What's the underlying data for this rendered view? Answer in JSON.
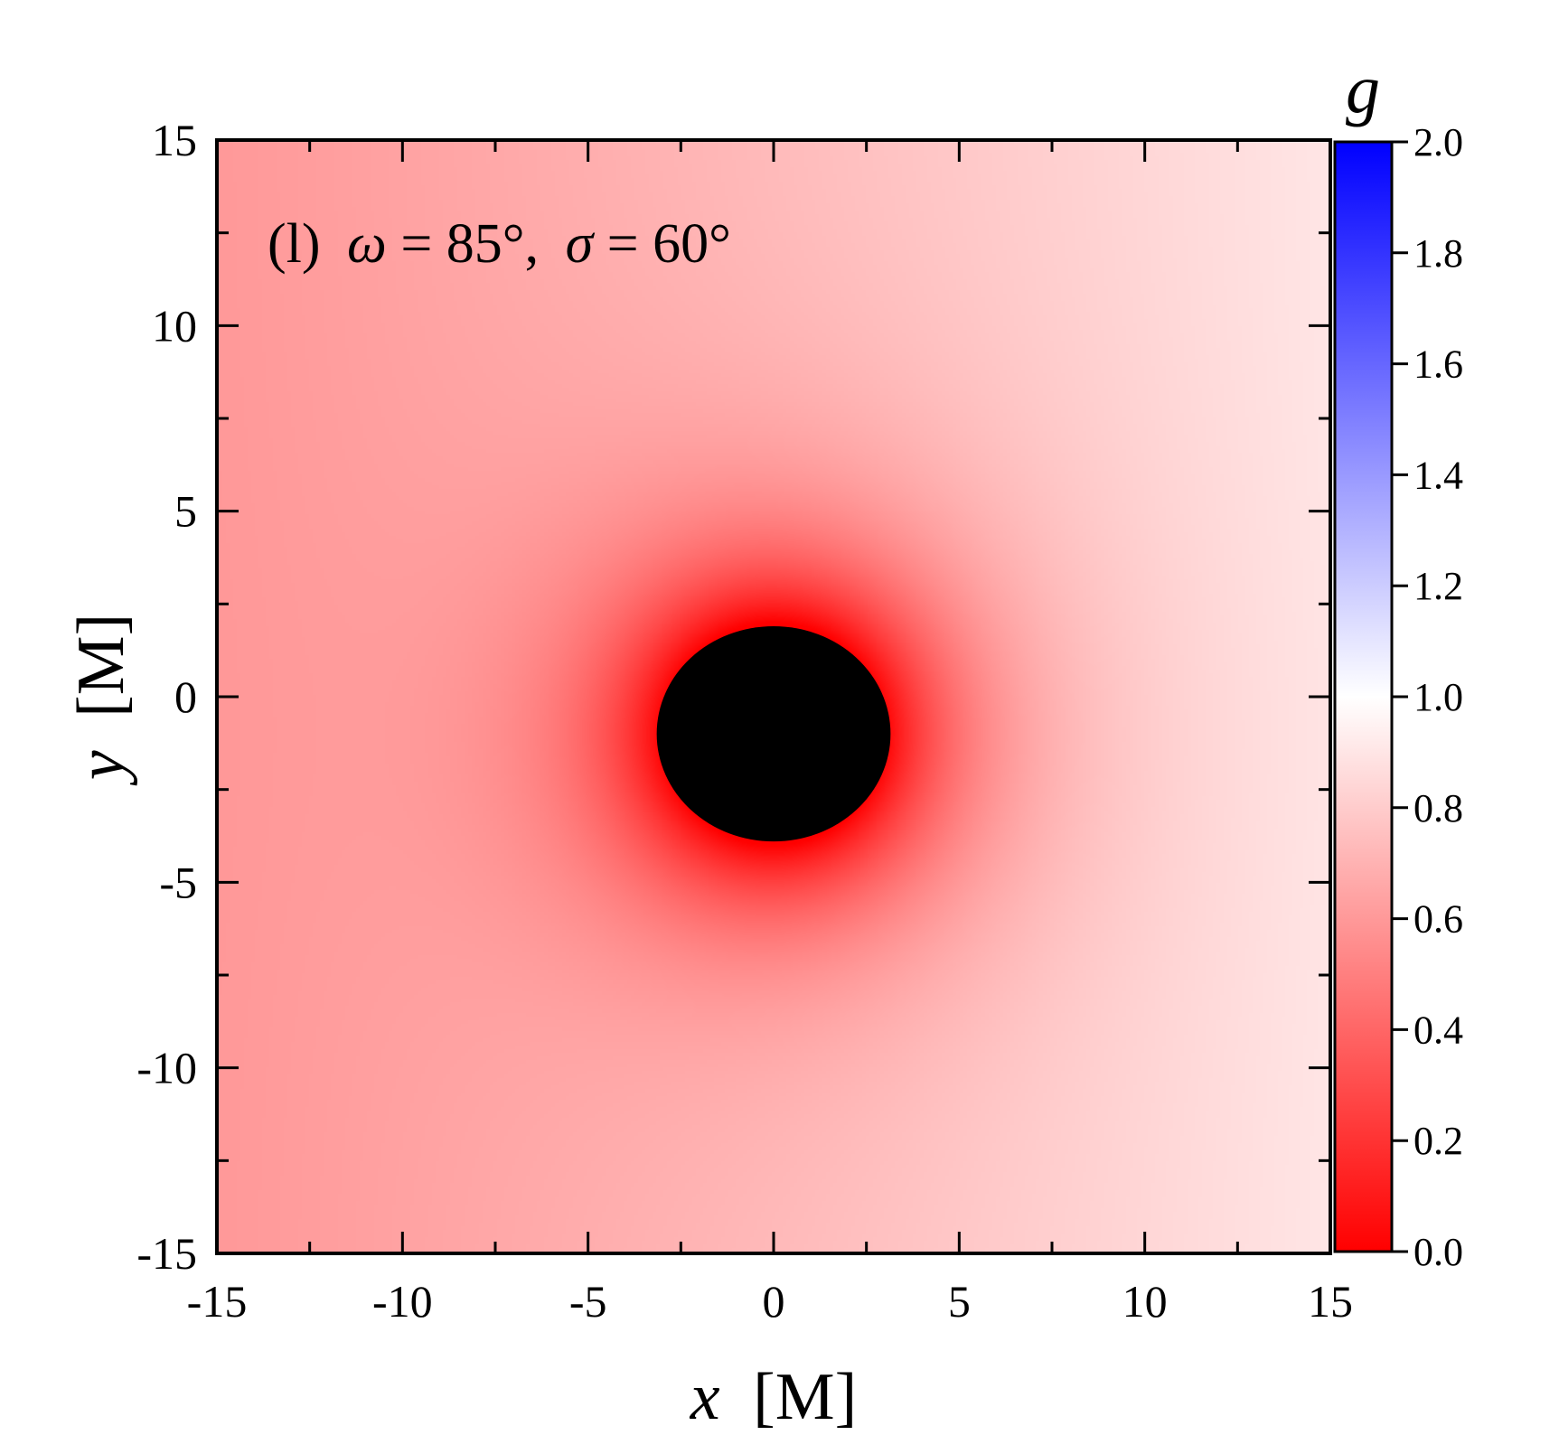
{
  "chart_data": {
    "type": "heatmap",
    "annotation": {
      "panel": "(l)",
      "omega_symbol": "ω",
      "omega_value": "= 85°,",
      "sigma_symbol": "σ",
      "sigma_value": "= 60°"
    },
    "x_axis": {
      "label_var": "x",
      "label_unit": "[M]",
      "range": [
        -15,
        15
      ],
      "ticks": [
        -15,
        -10,
        -5,
        0,
        5,
        10,
        15
      ],
      "tick_labels": [
        "-15",
        "-10",
        "-5",
        "0",
        "5",
        "10",
        "15"
      ]
    },
    "y_axis": {
      "label_var": "y",
      "label_unit": "[M]",
      "range": [
        -15,
        15
      ],
      "ticks": [
        -15,
        -10,
        -5,
        0,
        5,
        10,
        15
      ],
      "tick_labels": [
        "-15",
        "-10",
        "-5",
        "0",
        "5",
        "10",
        "15"
      ]
    },
    "colorbar": {
      "label": "g",
      "range": [
        0.0,
        2.0
      ],
      "ticks": [
        0.0,
        0.2,
        0.4,
        0.6,
        0.8,
        1.0,
        1.2,
        1.4,
        1.6,
        1.8,
        2.0
      ],
      "tick_labels": [
        "0.0",
        "0.2",
        "0.4",
        "0.6",
        "0.8",
        "1.0",
        "1.2",
        "1.4",
        "1.6",
        "1.8",
        "2.0"
      ],
      "colors": {
        "low": "#ff0000",
        "mid": "#ffffff",
        "high": "#0000ff"
      }
    },
    "shadow": {
      "color": "#000000",
      "center": [
        0.0,
        -1.0
      ],
      "radius_x": 3.15,
      "radius_y": 2.9
    },
    "field_values": {
      "near_shadow": 0.0,
      "left_far": 0.6,
      "right_far": 0.9
    }
  }
}
